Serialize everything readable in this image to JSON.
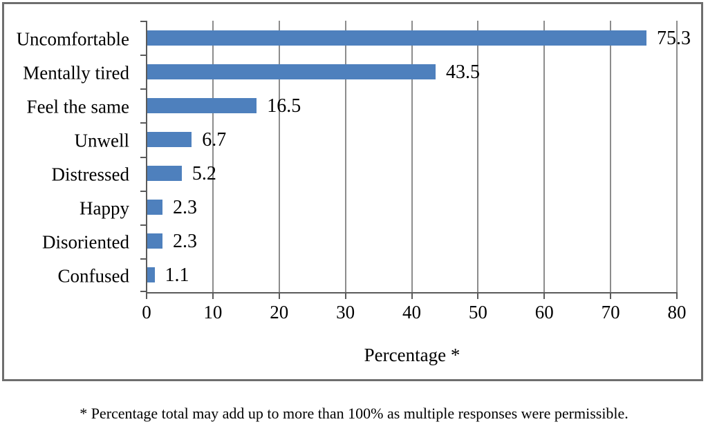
{
  "chart_data": {
    "type": "bar",
    "orientation": "horizontal",
    "categories": [
      "Uncomfortable",
      "Mentally tired",
      "Feel the same",
      "Unwell",
      "Distressed",
      "Happy",
      "Disoriented",
      "Confused"
    ],
    "values": [
      75.3,
      43.5,
      16.5,
      6.7,
      5.2,
      2.3,
      2.3,
      1.1
    ],
    "data_labels": [
      "75.3",
      "43.5",
      "16.5",
      "6.7",
      "5.2",
      "2.3",
      "2.3",
      "1.1"
    ],
    "title": "",
    "xlabel": "Percentage *",
    "ylabel": "",
    "xlim": [
      0,
      80
    ],
    "x_ticks": [
      0,
      10,
      20,
      30,
      40,
      50,
      60,
      70,
      80
    ],
    "grid": "vertical-only",
    "legend": "none",
    "bar_color": "#4e80bd",
    "gridline_color": "#8c8c8c",
    "axis_color": "#5a5a5a",
    "footnote": "* Percentage total may add up to more than 100% as multiple responses were permissible."
  }
}
